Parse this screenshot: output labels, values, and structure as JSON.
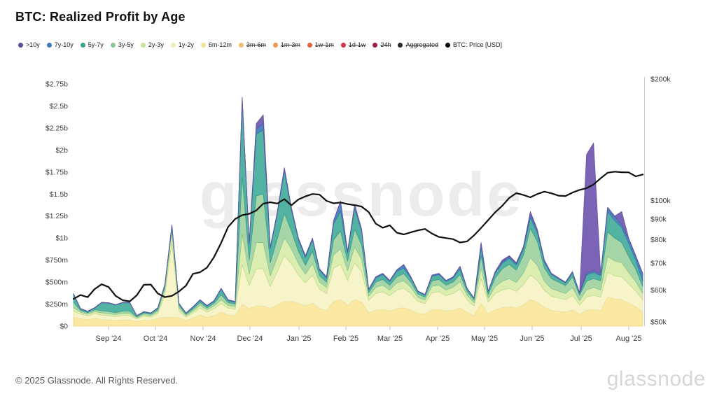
{
  "title": "BTC: Realized Profit by Age",
  "watermark": "glassnode",
  "footer": {
    "copyright": "© 2025 Glassnode. All Rights Reserved.",
    "brand": "glassnode"
  },
  "legend": {
    "items": [
      {
        "label": ">10y",
        "color": "#5b4a9e",
        "struck": false
      },
      {
        "label": "7y-10y",
        "color": "#3f7ab8",
        "struck": false
      },
      {
        "label": "5y-7y",
        "color": "#3aa390",
        "struck": false
      },
      {
        "label": "3y-5y",
        "color": "#8bc795",
        "struck": false
      },
      {
        "label": "2y-3y",
        "color": "#c8e29e",
        "struck": false
      },
      {
        "label": "1y-2y",
        "color": "#f2edbb",
        "struck": false
      },
      {
        "label": "6m-12m",
        "color": "#f5e293",
        "struck": false
      },
      {
        "label": "3m-6m",
        "color": "#f0be6e",
        "struck": true
      },
      {
        "label": "1m-3m",
        "color": "#ec9857",
        "struck": true
      },
      {
        "label": "1w-1m",
        "color": "#e0633d",
        "struck": true
      },
      {
        "label": "1d-1w",
        "color": "#cf3548",
        "struck": true
      },
      {
        "label": "24h",
        "color": "#9c1e45",
        "struck": true
      },
      {
        "label": "Aggregated",
        "color": "#2b2b2b",
        "struck": true
      },
      {
        "label": "BTC: Price [USD]",
        "color": "#000000",
        "struck": false
      }
    ]
  },
  "chart_data": {
    "type": "area",
    "stacked": true,
    "title": "BTC: Realized Profit by Age",
    "grid": false,
    "x_tick_labels": [
      "Sep '24",
      "Oct '24",
      "Nov '24",
      "Dec '24",
      "Jan '25",
      "Feb '25",
      "Mar '25",
      "Apr '25",
      "May '25",
      "Jun '25",
      "Jul '25",
      "Aug '25"
    ],
    "left_axis": {
      "labels": [
        "$2.75b",
        "$2.5b",
        "$2.25b",
        "$2b",
        "$1.75b",
        "$1.5b",
        "$1.25b",
        "$1b",
        "$750m",
        "$500m",
        "$250m",
        "$0"
      ],
      "values_usd_m": [
        2750,
        2500,
        2250,
        2000,
        1750,
        1500,
        1250,
        1000,
        750,
        500,
        250,
        0
      ],
      "range_usd_m": [
        0,
        2750
      ],
      "scale": "linear"
    },
    "right_axis": {
      "labels": [
        "$200k",
        "$100k",
        "$90k",
        "$80k",
        "$70k",
        "$60k",
        "$50k"
      ],
      "values_usd_k": [
        200,
        100,
        90,
        80,
        70,
        60,
        50
      ],
      "range_usd_k": [
        50,
        200
      ],
      "scale": "log"
    },
    "series": [
      {
        "name": "6m-12m",
        "color": "#fbe9a3",
        "edge": "#f0d37a",
        "values_usd_m": [
          100,
          85,
          72,
          88,
          75,
          70,
          65,
          70,
          70,
          50,
          70,
          63,
          88,
          100,
          100,
          95,
          63,
          92,
          126,
          99,
          122,
          160,
          126,
          118,
          250,
          200,
          230,
          230,
          200,
          240,
          280,
          280,
          260,
          230,
          260,
          200,
          180,
          280,
          300,
          240,
          300,
          270,
          150,
          180,
          190,
          170,
          200,
          210,
          180,
          145,
          135,
          185,
          190,
          170,
          180,
          205,
          155,
          120,
          260,
          140,
          185,
          210,
          220,
          205,
          240,
          300,
          270,
          210,
          180,
          170,
          160,
          185,
          130,
          180,
          190,
          175,
          330,
          310,
          300,
          260,
          220,
          160
        ]
      },
      {
        "name": "1y-2y",
        "color": "#f8f4ca",
        "edge": "#e9e2a4",
        "values_usd_m": [
          70,
          52,
          44,
          55,
          50,
          48,
          45,
          50,
          50,
          31,
          43,
          39,
          55,
          260,
          850,
          80,
          39,
          57,
          78,
          61,
          75,
          95,
          78,
          73,
          450,
          260,
          420,
          420,
          250,
          380,
          520,
          430,
          320,
          260,
          320,
          220,
          190,
          380,
          400,
          280,
          420,
          350,
          140,
          190,
          200,
          175,
          210,
          220,
          190,
          135,
          120,
          195,
          200,
          175,
          190,
          215,
          145,
          108,
          280,
          130,
          185,
          200,
          210,
          190,
          230,
          280,
          250,
          195,
          160,
          150,
          140,
          165,
          110,
          150,
          160,
          155,
          280,
          260,
          260,
          220,
          180,
          140
        ]
      },
      {
        "name": "2y-3y",
        "color": "#dcedb2",
        "edge": "#c2dc8c",
        "values_usd_m": [
          40,
          22,
          19,
          23,
          25,
          24,
          22,
          25,
          25,
          13,
          18,
          17,
          23,
          60,
          120,
          35,
          17,
          24,
          33,
          26,
          32,
          45,
          33,
          31,
          350,
          130,
          300,
          300,
          120,
          160,
          200,
          170,
          130,
          100,
          130,
          80,
          70,
          150,
          180,
          110,
          180,
          140,
          50,
          70,
          75,
          65,
          80,
          85,
          70,
          48,
          42,
          72,
          75,
          65,
          70,
          85,
          52,
          38,
          120,
          48,
          80,
          100,
          110,
          100,
          130,
          200,
          170,
          105,
          85,
          78,
          70,
          88,
          50,
          80,
          90,
          80,
          180,
          170,
          160,
          130,
          105,
          70
        ]
      },
      {
        "name": "3y-5y",
        "color": "#a6d6a7",
        "edge": "#89c590",
        "values_usd_m": [
          60,
          20,
          17,
          21,
          25,
          24,
          22,
          25,
          25,
          12,
          16,
          15,
          21,
          30,
          50,
          25,
          15,
          22,
          30,
          23,
          29,
          55,
          30,
          28,
          650,
          160,
          530,
          550,
          150,
          210,
          280,
          200,
          140,
          100,
          140,
          75,
          60,
          170,
          200,
          110,
          200,
          160,
          40,
          60,
          65,
          55,
          70,
          80,
          60,
          38,
          34,
          62,
          65,
          55,
          60,
          80,
          42,
          30,
          140,
          42,
          95,
          140,
          160,
          140,
          200,
          330,
          270,
          150,
          115,
          102,
          90,
          120,
          60,
          100,
          100,
          105,
          280,
          260,
          230,
          180,
          140,
          80
        ]
      },
      {
        "name": "5y-7y",
        "color": "#52b3a3",
        "edge": "#3b9c8e",
        "values_usd_m": [
          90,
          16,
          13,
          17,
          90,
          95,
          85,
          95,
          95,
          10,
          13,
          12,
          17,
          20,
          25,
          20,
          12,
          18,
          24,
          19,
          23,
          65,
          24,
          22,
          850,
          180,
          700,
          730,
          160,
          290,
          480,
          240,
          130,
          90,
          130,
          60,
          45,
          180,
          230,
          90,
          240,
          150,
          30,
          45,
          55,
          42,
          62,
          65,
          45,
          26,
          22,
          50,
          55,
          42,
          45,
          65,
          28,
          19,
          90,
          30,
          55,
          65,
          70,
          60,
          70,
          120,
          100,
          65,
          45,
          38,
          30,
          45,
          22,
          70,
          70,
          60,
          230,
          200,
          170,
          150,
          105,
          60
        ]
      },
      {
        "name": "7y-10y",
        "color": "#4e86c2",
        "edge": "#3a6ead",
        "values_usd_m": [
          8,
          4,
          4,
          5,
          4,
          4,
          4,
          4,
          4,
          3,
          4,
          3,
          5,
          4,
          4,
          4,
          3,
          6,
          8,
          6,
          8,
          8,
          8,
          7,
          40,
          15,
          60,
          70,
          15,
          17,
          35,
          25,
          17,
          17,
          17,
          13,
          13,
          35,
          100,
          17,
          35,
          27,
          8,
          13,
          13,
          11,
          16,
          37,
          13,
          7,
          6,
          14,
          13,
          11,
          13,
          27,
          7,
          4,
          55,
          8,
          15,
          15,
          20,
          18,
          22,
          45,
          32,
          20,
          13,
          10,
          8,
          14,
          6,
          20,
          20,
          20,
          45,
          45,
          30,
          55,
          45,
          85
        ]
      },
      {
        "name": ">10y",
        "color": "#7b64b5",
        "edge": "#66519f",
        "values_usd_m": [
          2,
          1,
          1,
          1,
          1,
          1,
          1,
          1,
          1,
          1,
          1,
          1,
          1,
          1,
          1,
          1,
          1,
          1,
          1,
          1,
          1,
          2,
          1,
          1,
          10,
          5,
          60,
          100,
          5,
          3,
          5,
          5,
          3,
          3,
          3,
          2,
          2,
          5,
          10,
          3,
          5,
          3,
          2,
          2,
          2,
          2,
          2,
          3,
          2,
          1,
          1,
          2,
          2,
          2,
          2,
          3,
          1,
          1,
          5,
          2,
          5,
          20,
          10,
          7,
          8,
          25,
          8,
          5,
          2,
          2,
          2,
          3,
          2,
          1350,
          1450,
          5,
          5,
          5,
          150,
          5,
          5,
          5
        ]
      }
    ],
    "price_line": {
      "name": "BTC: Price [USD]",
      "color": "#111111",
      "values_usd_k": [
        57,
        58.3,
        57.6,
        60.3,
        62,
        61,
        58,
        56.6,
        56.2,
        58.2,
        61.8,
        61.9,
        58.8,
        57.6,
        58,
        59.5,
        61.5,
        65.8,
        66.4,
        68.2,
        72.4,
        78.5,
        86,
        90,
        92,
        92.7,
        94.5,
        98.2,
        99,
        98.3,
        100.8,
        97.3,
        100.6,
        102.4,
        103.8,
        103.4,
        99.8,
        98.4,
        98.9,
        98,
        97.4,
        96.6,
        93.6,
        87.6,
        85.6,
        86.8,
        83.2,
        82.4,
        83.4,
        84.3,
        85,
        82.8,
        81.2,
        80.7,
        80.2,
        78.7,
        79.2,
        82,
        85.5,
        89.4,
        93.5,
        97,
        101.5,
        104.3,
        103.2,
        101.8,
        103.8,
        105.2,
        104.2,
        102.8,
        102.6,
        104.6,
        106.2,
        107.3,
        109.6,
        113.5,
        117.2,
        117.9,
        117.5,
        117.4,
        114.8,
        116
      ]
    }
  }
}
